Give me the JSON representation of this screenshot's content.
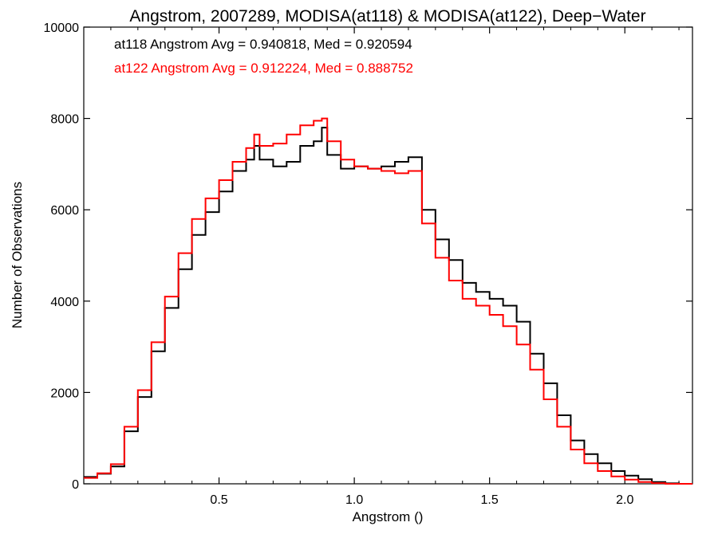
{
  "chart_data": {
    "type": "line",
    "step": true,
    "title": "Angstrom, 2007289, MODISA(at118) & MODISA(at122), Deep−Water",
    "xlabel": "Angstrom ()",
    "ylabel": "Number of Observations",
    "xlim": [
      0.0,
      2.25
    ],
    "ylim": [
      0,
      10000
    ],
    "xticks": [
      0.5,
      1.0,
      1.5,
      2.0
    ],
    "xtick_labels": [
      "0.5",
      "1.0",
      "1.5",
      "2.0"
    ],
    "yticks": [
      0,
      2000,
      4000,
      6000,
      8000,
      10000
    ],
    "ytick_labels": [
      "0",
      "2000",
      "4000",
      "6000",
      "8000",
      "10000"
    ],
    "grid": false,
    "legend": "top-left",
    "series": [
      {
        "name": "at118",
        "color": "#000000",
        "annotation": "at118 Angstrom Avg = 0.940818, Med = 0.920594",
        "x": [
          0.0,
          0.05,
          0.1,
          0.15,
          0.2,
          0.25,
          0.3,
          0.35,
          0.4,
          0.45,
          0.5,
          0.55,
          0.6,
          0.63,
          0.65,
          0.7,
          0.75,
          0.8,
          0.85,
          0.88,
          0.9,
          0.95,
          1.0,
          1.05,
          1.1,
          1.15,
          1.2,
          1.25,
          1.3,
          1.35,
          1.4,
          1.45,
          1.5,
          1.55,
          1.6,
          1.65,
          1.7,
          1.75,
          1.8,
          1.85,
          1.9,
          1.95,
          2.0,
          2.05,
          2.1,
          2.15,
          2.2,
          2.25
        ],
        "y": [
          150,
          220,
          380,
          1150,
          1900,
          2900,
          3850,
          4700,
          5450,
          5950,
          6400,
          6850,
          7100,
          7400,
          7100,
          6950,
          7050,
          7400,
          7500,
          7800,
          7200,
          6900,
          6950,
          6900,
          6950,
          7050,
          7150,
          6000,
          5350,
          4900,
          4400,
          4200,
          4050,
          3900,
          3550,
          2850,
          2200,
          1500,
          950,
          650,
          450,
          280,
          180,
          100,
          40,
          10,
          0,
          0
        ]
      },
      {
        "name": "at122",
        "color": "#ff0000",
        "annotation": "at122 Angstrom Avg = 0.912224, Med = 0.888752",
        "x": [
          0.0,
          0.05,
          0.1,
          0.15,
          0.2,
          0.25,
          0.3,
          0.35,
          0.4,
          0.45,
          0.5,
          0.55,
          0.6,
          0.63,
          0.65,
          0.7,
          0.75,
          0.8,
          0.85,
          0.88,
          0.9,
          0.95,
          1.0,
          1.05,
          1.1,
          1.15,
          1.2,
          1.25,
          1.3,
          1.35,
          1.4,
          1.45,
          1.5,
          1.55,
          1.6,
          1.65,
          1.7,
          1.75,
          1.8,
          1.85,
          1.9,
          1.95,
          2.0,
          2.05,
          2.1,
          2.15,
          2.2,
          2.25
        ],
        "y": [
          130,
          230,
          430,
          1250,
          2050,
          3100,
          4100,
          5050,
          5800,
          6250,
          6650,
          7050,
          7350,
          7650,
          7400,
          7450,
          7650,
          7850,
          7950,
          8000,
          7500,
          7100,
          6950,
          6900,
          6850,
          6800,
          6850,
          5700,
          4950,
          4450,
          4050,
          3900,
          3700,
          3450,
          3050,
          2500,
          1850,
          1250,
          750,
          450,
          280,
          160,
          90,
          40,
          15,
          0,
          0,
          0
        ]
      }
    ]
  }
}
